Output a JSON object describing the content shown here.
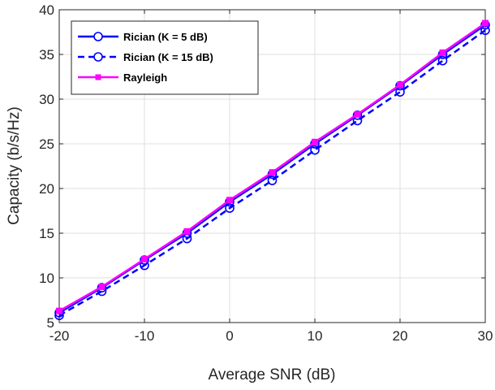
{
  "chart_data": {
    "type": "line",
    "title": "",
    "xlabel": "Average SNR (dB)",
    "ylabel": "Capacity (b/s/Hz)",
    "xlim": [
      -20,
      30
    ],
    "ylim": [
      5,
      40
    ],
    "xticks": [
      -20,
      -10,
      0,
      10,
      20,
      30
    ],
    "yticks": [
      5,
      10,
      15,
      20,
      25,
      30,
      35,
      40
    ],
    "grid": true,
    "legend_position": "top-left",
    "x": [
      -20,
      -15,
      -10,
      -5,
      0,
      5,
      10,
      15,
      20,
      25,
      30
    ],
    "series": [
      {
        "name": "Rician (K = 5 dB)",
        "color": "#0000ff",
        "line_style": "solid",
        "marker": "circle",
        "values": [
          6.1,
          8.9,
          12.0,
          15.0,
          18.5,
          21.6,
          25.0,
          28.2,
          31.5,
          35.0,
          38.3
        ]
      },
      {
        "name": "Rician (K = 15 dB)",
        "color": "#0000ff",
        "line_style": "dashed",
        "marker": "circle",
        "values": [
          5.8,
          8.5,
          11.4,
          14.4,
          17.8,
          20.9,
          24.3,
          27.6,
          30.8,
          34.3,
          37.7
        ]
      },
      {
        "name": "Rayleigh",
        "color": "#ff00ff",
        "line_style": "solid",
        "marker": "square",
        "values": [
          6.3,
          9.0,
          12.1,
          15.2,
          18.7,
          21.8,
          25.2,
          28.3,
          31.6,
          35.2,
          38.5
        ]
      }
    ]
  }
}
